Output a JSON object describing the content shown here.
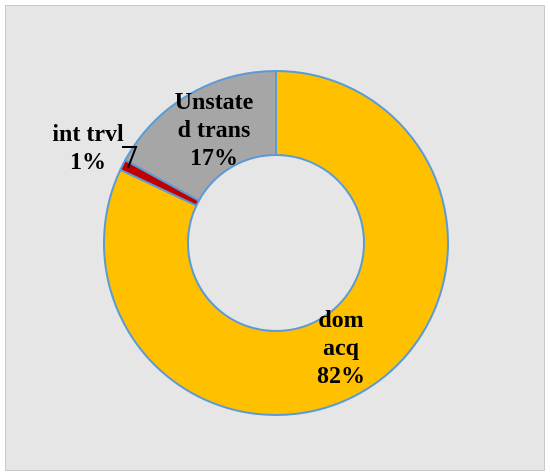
{
  "chart_data": {
    "type": "pie",
    "variant": "donut",
    "title": "",
    "start_angle_deg": 0,
    "direction": "clockwise",
    "slices": [
      {
        "category": "dom acq",
        "value": 82,
        "value_label": "82%",
        "color": "#ffc000"
      },
      {
        "category": "int trvl",
        "value": 1,
        "value_label": "1%",
        "color": "#c00000"
      },
      {
        "category": "Unstated trans",
        "value": 17,
        "value_label": "17%",
        "color": "#a6a6a6"
      }
    ],
    "label_lines": {
      "dom acq": [
        "dom",
        "acq",
        "82%"
      ],
      "int trvl": [
        "int trvl",
        "1%"
      ],
      "Unstated trans": [
        "Unstate",
        "d trans",
        "17%"
      ]
    },
    "slice_border_color": "#5b9bd5",
    "background_color": "#e6e6e6",
    "legend": "none"
  }
}
